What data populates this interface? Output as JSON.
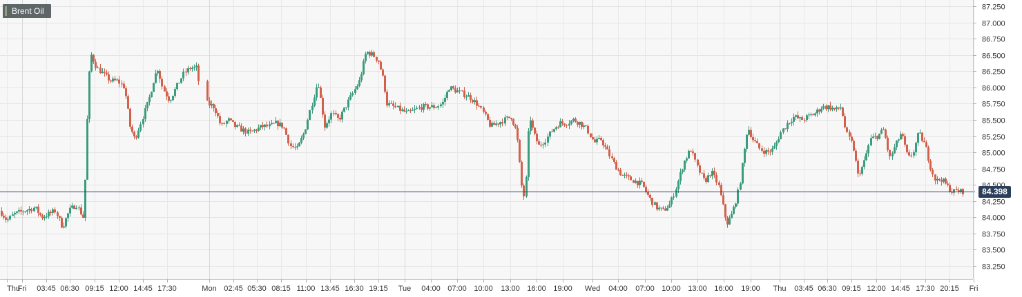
{
  "chart_data": {
    "type": "candlestick",
    "legend": {
      "label": "Brent Oil",
      "placement": "top-left"
    },
    "last_price": "84.398",
    "last_price_value": 84.398,
    "y_ticks": [
      "87.250",
      "87.000",
      "86.750",
      "86.500",
      "86.250",
      "86.000",
      "85.750",
      "85.500",
      "85.250",
      "85.000",
      "84.750",
      "84.500",
      "84.250",
      "84.000",
      "83.750",
      "83.500",
      "83.250"
    ],
    "ylim": [
      83.06,
      87.36
    ],
    "x_ticks": [
      "Thu",
      "Fri",
      "03:45",
      "06:30",
      "09:15",
      "12:00",
      "14:45",
      "17:30",
      "Mon",
      "02:45",
      "05:30",
      "08:15",
      "11:00",
      "13:45",
      "16:30",
      "19:15",
      "Tue",
      "04:00",
      "07:00",
      "10:00",
      "13:00",
      "16:00",
      "19:00",
      "Wed",
      "04:00",
      "07:00",
      "10:00",
      "13:00",
      "16:00",
      "19:00",
      "Thu",
      "03:45",
      "06:30",
      "09:15",
      "12:00",
      "14:45",
      "17:30",
      "20:15",
      "Fri"
    ],
    "grid": true,
    "price_path": [
      [
        0,
        84.1
      ],
      [
        10,
        83.95
      ],
      [
        20,
        84.05
      ],
      [
        35,
        84.1
      ],
      [
        50,
        84.15
      ],
      [
        60,
        84.0
      ],
      [
        70,
        84.05
      ],
      [
        80,
        84.1
      ],
      [
        90,
        83.85
      ],
      [
        100,
        84.1
      ],
      [
        110,
        84.2
      ],
      [
        120,
        84.0
      ],
      [
        123,
        84.6
      ],
      [
        126,
        85.5
      ],
      [
        129,
        86.2
      ],
      [
        132,
        86.5
      ],
      [
        140,
        86.3
      ],
      [
        150,
        86.2
      ],
      [
        160,
        86.1
      ],
      [
        170,
        86.1
      ],
      [
        180,
        86.0
      ],
      [
        188,
        85.4
      ],
      [
        195,
        85.2
      ],
      [
        205,
        85.5
      ],
      [
        215,
        85.8
      ],
      [
        222,
        86.1
      ],
      [
        228,
        86.3
      ],
      [
        235,
        86.0
      ],
      [
        245,
        85.8
      ],
      [
        255,
        86.0
      ],
      [
        265,
        86.2
      ],
      [
        275,
        86.3
      ],
      [
        285,
        86.3
      ],
      [
        290,
        85.85
      ],
      [
        300,
        85.75
      ],
      [
        310,
        85.7
      ],
      [
        320,
        85.4
      ],
      [
        330,
        85.5
      ],
      [
        340,
        85.4
      ],
      [
        350,
        85.35
      ],
      [
        360,
        85.3
      ],
      [
        370,
        85.35
      ],
      [
        380,
        85.4
      ],
      [
        390,
        85.4
      ],
      [
        400,
        85.45
      ],
      [
        410,
        85.4
      ],
      [
        420,
        85.1
      ],
      [
        430,
        85.05
      ],
      [
        440,
        85.3
      ],
      [
        450,
        85.7
      ],
      [
        460,
        86.1
      ],
      [
        470,
        85.4
      ],
      [
        480,
        85.6
      ],
      [
        490,
        85.5
      ],
      [
        500,
        85.7
      ],
      [
        510,
        85.9
      ],
      [
        520,
        86.1
      ],
      [
        530,
        86.55
      ],
      [
        540,
        86.5
      ],
      [
        548,
        86.4
      ],
      [
        555,
        86.1
      ],
      [
        560,
        85.75
      ],
      [
        570,
        85.7
      ],
      [
        580,
        85.65
      ],
      [
        590,
        85.6
      ],
      [
        600,
        85.65
      ],
      [
        610,
        85.7
      ],
      [
        620,
        85.7
      ],
      [
        630,
        85.7
      ],
      [
        640,
        85.75
      ],
      [
        650,
        86.0
      ],
      [
        660,
        85.95
      ],
      [
        670,
        85.9
      ],
      [
        680,
        85.85
      ],
      [
        690,
        85.75
      ],
      [
        700,
        85.6
      ],
      [
        710,
        85.4
      ],
      [
        720,
        85.45
      ],
      [
        730,
        85.5
      ],
      [
        740,
        85.55
      ],
      [
        748,
        85.3
      ],
      [
        755,
        84.5
      ],
      [
        760,
        84.25
      ],
      [
        766,
        85.6
      ],
      [
        772,
        85.3
      ],
      [
        780,
        85.1
      ],
      [
        790,
        85.2
      ],
      [
        800,
        85.35
      ],
      [
        810,
        85.45
      ],
      [
        820,
        85.45
      ],
      [
        830,
        85.5
      ],
      [
        840,
        85.45
      ],
      [
        850,
        85.35
      ],
      [
        860,
        85.15
      ],
      [
        870,
        85.2
      ],
      [
        880,
        85.0
      ],
      [
        890,
        84.8
      ],
      [
        900,
        84.65
      ],
      [
        910,
        84.6
      ],
      [
        920,
        84.55
      ],
      [
        930,
        84.5
      ],
      [
        940,
        84.3
      ],
      [
        950,
        84.15
      ],
      [
        960,
        84.1
      ],
      [
        970,
        84.2
      ],
      [
        980,
        84.5
      ],
      [
        990,
        84.85
      ],
      [
        1000,
        85.05
      ],
      [
        1010,
        84.75
      ],
      [
        1020,
        84.55
      ],
      [
        1030,
        84.7
      ],
      [
        1040,
        84.5
      ],
      [
        1046,
        84.2
      ],
      [
        1052,
        83.9
      ],
      [
        1058,
        84.0
      ],
      [
        1064,
        84.2
      ],
      [
        1070,
        84.45
      ],
      [
        1076,
        84.9
      ],
      [
        1082,
        85.4
      ],
      [
        1090,
        85.2
      ],
      [
        1100,
        85.05
      ],
      [
        1110,
        85.0
      ],
      [
        1120,
        85.05
      ],
      [
        1130,
        85.3
      ],
      [
        1140,
        85.45
      ],
      [
        1150,
        85.55
      ],
      [
        1160,
        85.5
      ],
      [
        1170,
        85.55
      ],
      [
        1180,
        85.6
      ],
      [
        1190,
        85.7
      ],
      [
        1200,
        85.7
      ],
      [
        1210,
        85.65
      ],
      [
        1218,
        85.7
      ],
      [
        1225,
        85.3
      ],
      [
        1235,
        85.1
      ],
      [
        1242,
        84.65
      ],
      [
        1250,
        84.8
      ],
      [
        1260,
        85.2
      ],
      [
        1270,
        85.25
      ],
      [
        1280,
        85.35
      ],
      [
        1288,
        84.9
      ],
      [
        1296,
        85.1
      ],
      [
        1305,
        85.3
      ],
      [
        1315,
        84.9
      ],
      [
        1322,
        85.0
      ],
      [
        1330,
        85.3
      ],
      [
        1340,
        85.1
      ],
      [
        1348,
        84.75
      ],
      [
        1355,
        84.55
      ],
      [
        1362,
        84.6
      ],
      [
        1370,
        84.5
      ],
      [
        1378,
        84.4
      ],
      [
        1385,
        84.4
      ],
      [
        1394,
        84.398
      ]
    ]
  }
}
